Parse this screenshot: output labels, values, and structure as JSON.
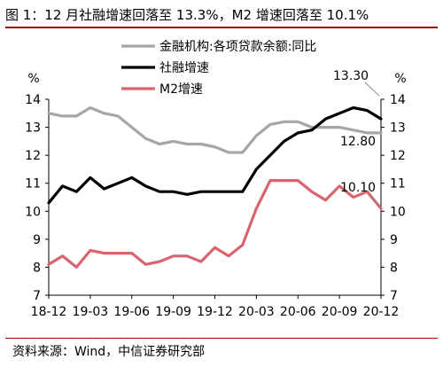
{
  "title": "图 1：12 月社融增速回落至 13.3%，M2 增速回落至 10.1%",
  "source": "资料来源：Wind，中信证券研究部",
  "chart_data": {
    "type": "line",
    "x": [
      "18-12",
      "19-01",
      "19-02",
      "19-03",
      "19-04",
      "19-05",
      "19-06",
      "19-07",
      "19-08",
      "19-09",
      "19-10",
      "19-11",
      "19-12",
      "20-01",
      "20-02",
      "20-03",
      "20-04",
      "20-05",
      "20-06",
      "20-07",
      "20-08",
      "20-09",
      "20-10",
      "20-11",
      "20-12"
    ],
    "x_tick_labels": [
      "18-12",
      "19-03",
      "19-06",
      "19-09",
      "19-12",
      "20-03",
      "20-06",
      "20-09",
      "20-12"
    ],
    "y_left_label": "%",
    "y_right_label": "%",
    "ylim": [
      7,
      14
    ],
    "y_ticks": [
      7,
      8,
      9,
      10,
      11,
      12,
      13,
      14
    ],
    "grid": false,
    "legend_position": "top",
    "series": [
      {
        "name": "金融机构:各项贷款余额:同比",
        "color": "#a6a6a6",
        "values": [
          13.5,
          13.4,
          13.4,
          13.7,
          13.5,
          13.4,
          13.0,
          12.6,
          12.4,
          12.5,
          12.4,
          12.4,
          12.3,
          12.1,
          12.1,
          12.7,
          13.1,
          13.2,
          13.2,
          13.0,
          13.0,
          13.0,
          12.9,
          12.8,
          12.8
        ]
      },
      {
        "name": "社融增速",
        "color": "#000000",
        "values": [
          10.3,
          10.9,
          10.7,
          11.2,
          10.8,
          11.0,
          11.2,
          10.9,
          10.7,
          10.7,
          10.6,
          10.7,
          10.7,
          10.7,
          10.7,
          11.5,
          12.0,
          12.5,
          12.8,
          12.9,
          13.3,
          13.5,
          13.7,
          13.6,
          13.3
        ]
      },
      {
        "name": "M2增速",
        "color": "#d9646e",
        "values": [
          8.1,
          8.4,
          8.0,
          8.6,
          8.5,
          8.5,
          8.5,
          8.1,
          8.2,
          8.4,
          8.4,
          8.2,
          8.7,
          8.4,
          8.8,
          10.1,
          11.1,
          11.1,
          11.1,
          10.7,
          10.4,
          10.9,
          10.5,
          10.7,
          10.1
        ]
      }
    ],
    "annotations": [
      {
        "text": "13.30",
        "series": "社融增速",
        "index": 24
      },
      {
        "text": "12.80",
        "series": "金融机构:各项贷款余额:同比",
        "index": 24
      },
      {
        "text": "10.10",
        "series": "M2增速",
        "index": 24
      }
    ]
  }
}
